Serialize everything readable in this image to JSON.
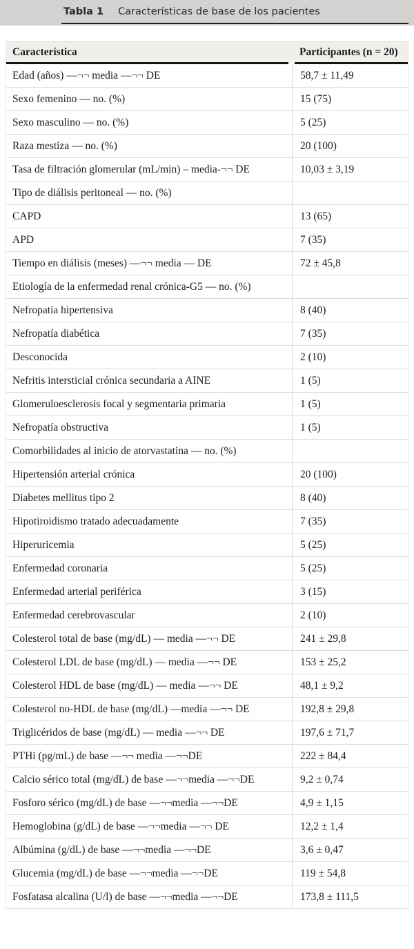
{
  "caption_bar": {
    "label": "Tabla 1",
    "title": "Características de base de los pacientes"
  },
  "table": {
    "columns": [
      "Característica",
      "Participantes (n = 20)"
    ],
    "rows": [
      {
        "characteristic": "Edad (años) —¬¬ media —¬¬ DE",
        "value": "58,7 ± 11,49"
      },
      {
        "characteristic": "Sexo femenino — no. (%)",
        "value": "15 (75)"
      },
      {
        "characteristic": "Sexo masculino — no. (%)",
        "value": "5 (25)"
      },
      {
        "characteristic": "Raza mestiza — no. (%)",
        "value": "20 (100)"
      },
      {
        "characteristic": "Tasa de filtración glomerular (mL/min) – media-¬¬ DE",
        "value": "10,03 ± 3,19"
      },
      {
        "characteristic": "Tipo de diálisis peritoneal — no. (%)",
        "value": ""
      },
      {
        "characteristic": "CAPD",
        "value": "13 (65)"
      },
      {
        "characteristic": "APD",
        "value": "7 (35)"
      },
      {
        "characteristic": "Tiempo en diálisis (meses) —¬¬ media — DE",
        "value": "72 ± 45,8"
      },
      {
        "characteristic": "Etiología de la enfermedad renal crónica-G5 — no. (%)",
        "value": ""
      },
      {
        "characteristic": "Nefropatía hipertensiva",
        "value": "8 (40)"
      },
      {
        "characteristic": "Nefropatía diabética",
        "value": "7 (35)"
      },
      {
        "characteristic": "Desconocida",
        "value": "2 (10)"
      },
      {
        "characteristic": "Nefritis intersticial crónica secundaria a AINE",
        "value": "1 (5)"
      },
      {
        "characteristic": "Glomeruloesclerosis focal y segmentaria primaria",
        "value": "1 (5)"
      },
      {
        "characteristic": "Nefropatía obstructiva",
        "value": "1 (5)"
      },
      {
        "characteristic": "Comorbilidades al inicio de atorvastatina — no. (%)",
        "value": ""
      },
      {
        "characteristic": "Hipertensión arterial crónica",
        "value": "20 (100)"
      },
      {
        "characteristic": "Diabetes mellitus tipo 2",
        "value": "8 (40)"
      },
      {
        "characteristic": "Hipotiroidismo tratado adecuadamente",
        "value": "7 (35)"
      },
      {
        "characteristic": "Hiperuricemia",
        "value": "5 (25)"
      },
      {
        "characteristic": "Enfermedad coronaria",
        "value": "5 (25)"
      },
      {
        "characteristic": "Enfermedad arterial periférica",
        "value": "3 (15)"
      },
      {
        "characteristic": "Enfermedad cerebrovascular",
        "value": "2 (10)"
      },
      {
        "characteristic": "Colesterol total de base (mg/dL) — media —¬¬ DE",
        "value": "241 ± 29,8"
      },
      {
        "characteristic": "Colesterol LDL de base (mg/dL) — media —¬¬ DE",
        "value": "153 ± 25,2"
      },
      {
        "characteristic": "Colesterol HDL de base (mg/dL) — media —¬¬ DE",
        "value": "48,1 ± 9,2"
      },
      {
        "characteristic": "Colesterol no-HDL de base (mg/dL) —media —¬¬ DE",
        "value": "192,8 ± 29,8"
      },
      {
        "characteristic": "Triglicéridos de base (mg/dL) — media —¬¬ DE",
        "value": "197,6 ± 71,7"
      },
      {
        "characteristic": "PTHi (pg/mL) de base —¬¬ media —¬¬DE",
        "value": "222 ± 84,4"
      },
      {
        "characteristic": "Calcio sérico total (mg/dL) de base —¬¬media —¬¬DE",
        "value": "9,2 ± 0,74"
      },
      {
        "characteristic": "Fosforo sérico (mg/dL) de base —¬¬media —¬¬DE",
        "value": "4,9 ± 1,15"
      },
      {
        "characteristic": "Hemoglobina (g/dL) de base —¬¬media —¬¬ DE",
        "value": "12,2 ± 1,4"
      },
      {
        "characteristic": "Albúmina (g/dL) de base —¬¬media —¬¬DE",
        "value": "3,6 ± 0,47"
      },
      {
        "characteristic": "Glucemia (mg/dL) de base —¬¬media —¬¬DE",
        "value": "119 ± 54,8"
      },
      {
        "characteristic": "Fosfatasa alcalina (U/l) de base —¬¬media —¬¬DE",
        "value": "173,8 ± 111,5"
      }
    ]
  },
  "colors": {
    "caption_bar_bg": "#d3d2d0",
    "caption_rule": "#1f1f1f",
    "header_bg": "#f0efeb",
    "header_rule": "#141414",
    "row_border": "#dcdcda",
    "column_divider": "#d8d7d4",
    "text": "#1c1c1c"
  }
}
